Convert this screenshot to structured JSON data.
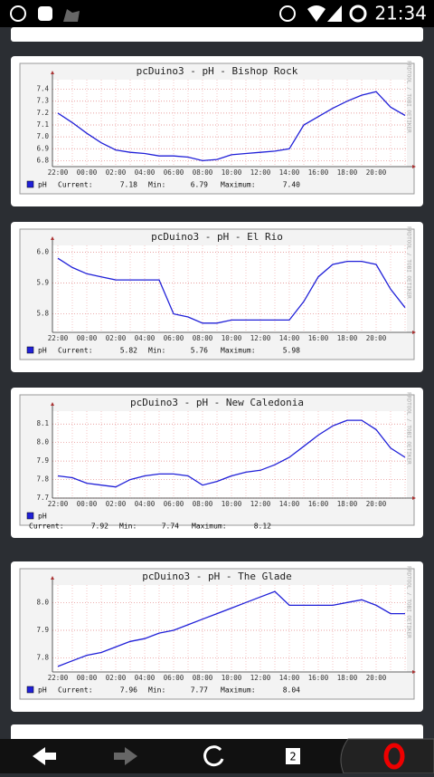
{
  "status_bar": {
    "time": "21:34"
  },
  "watermark": "RRDTOOL / TOBI OETIKER",
  "nav": {
    "tab_count": "2"
  },
  "chart_data": [
    {
      "type": "line",
      "title": "pcDuino3 - pH - Bishop Rock",
      "categories": [
        "22:00",
        null,
        "00:00",
        null,
        "02:00",
        null,
        "04:00",
        null,
        "06:00",
        null,
        "08:00",
        null,
        "10:00",
        null,
        "12:00",
        null,
        "14:00",
        null,
        "16:00",
        null,
        "18:00",
        null,
        "20:00",
        null,
        null
      ],
      "series": [
        {
          "name": "pH",
          "color": "#2020d8",
          "values": [
            7.2,
            7.12,
            7.03,
            6.95,
            6.89,
            6.87,
            6.86,
            6.84,
            6.84,
            6.83,
            6.8,
            6.81,
            6.85,
            6.86,
            6.87,
            6.88,
            6.9,
            7.1,
            7.17,
            7.24,
            7.3,
            7.35,
            7.38,
            7.25,
            7.18
          ]
        }
      ],
      "ylim": [
        6.75,
        7.45
      ],
      "yticks": [
        {
          "value": 6.8,
          "label": "6.8"
        },
        6.9,
        {
          "value": 7,
          "label": "7.0"
        },
        7.1,
        7.2,
        7.3,
        7.4
      ],
      "grid": true,
      "stats": [
        {
          "label": "Current:",
          "value": "7.18"
        },
        {
          "label": "Min:",
          "value": "6.79"
        },
        {
          "label": "Maximum:",
          "value": "7.40"
        }
      ]
    },
    {
      "type": "line",
      "title": "pcDuino3 - pH - El Rio",
      "categories": [
        "22:00",
        null,
        "00:00",
        null,
        "02:00",
        null,
        "04:00",
        null,
        "06:00",
        null,
        "08:00",
        null,
        "10:00",
        null,
        "12:00",
        null,
        "14:00",
        null,
        "16:00",
        null,
        "18:00",
        null,
        "20:00",
        null,
        null
      ],
      "series": [
        {
          "name": "pH",
          "color": "#2020d8",
          "values": [
            5.98,
            5.95,
            5.93,
            5.92,
            5.91,
            5.91,
            5.91,
            5.91,
            5.8,
            5.79,
            5.77,
            5.77,
            5.78,
            5.78,
            5.78,
            5.78,
            5.78,
            5.84,
            5.92,
            5.96,
            5.97,
            5.97,
            5.96,
            5.88,
            5.82
          ]
        }
      ],
      "ylim": [
        5.74,
        6.01
      ],
      "yticks": [
        5.8,
        5.9,
        {
          "value": 6,
          "label": "6.0"
        }
      ],
      "grid": true,
      "stats": [
        {
          "label": "Current:",
          "value": "5.82"
        },
        {
          "label": "Min:",
          "value": "5.76"
        },
        {
          "label": "Maximum:",
          "value": "5.98"
        }
      ]
    },
    {
      "type": "line",
      "title": "pcDuino3 - pH - New Caledonia",
      "categories": [
        "22:00",
        null,
        "00:00",
        null,
        "02:00",
        null,
        "04:00",
        null,
        "06:00",
        null,
        "08:00",
        null,
        "10:00",
        null,
        "12:00",
        null,
        "14:00",
        null,
        "16:00",
        null,
        "18:00",
        null,
        "20:00",
        null,
        null
      ],
      "series": [
        {
          "name": "pH",
          "color": "#2020d8",
          "values": [
            7.82,
            7.81,
            7.78,
            7.77,
            7.76,
            7.8,
            7.82,
            7.83,
            7.83,
            7.82,
            7.77,
            7.79,
            7.82,
            7.84,
            7.85,
            7.88,
            7.92,
            7.98,
            8.04,
            8.09,
            8.12,
            8.12,
            8.07,
            7.97,
            7.92
          ]
        }
      ],
      "ylim": [
        7.7,
        8.15
      ],
      "yticks": [
        7.7,
        7.8,
        7.9,
        {
          "value": 8,
          "label": "8.0"
        },
        8.1
      ],
      "grid": true,
      "stats": [
        {
          "label": "Current:",
          "value": "7.92"
        },
        {
          "label": "Min:",
          "value": "7.74"
        },
        {
          "label": "Maximum:",
          "value": "8.12"
        }
      ]
    },
    {
      "type": "line",
      "title": "pcDuino3 - pH - The Glade",
      "categories": [
        "22:00",
        null,
        "00:00",
        null,
        "02:00",
        null,
        "04:00",
        null,
        "06:00",
        null,
        "08:00",
        null,
        "10:00",
        null,
        "12:00",
        null,
        "14:00",
        null,
        "16:00",
        null,
        "18:00",
        null,
        "20:00",
        null,
        null
      ],
      "series": [
        {
          "name": "pH",
          "color": "#2020d8",
          "values": [
            7.77,
            7.79,
            7.81,
            7.82,
            7.84,
            7.86,
            7.87,
            7.89,
            7.9,
            7.92,
            7.94,
            7.96,
            7.98,
            8,
            8.02,
            8.04,
            7.99,
            7.99,
            7.99,
            7.99,
            8,
            8.01,
            7.99,
            7.96,
            7.96
          ]
        }
      ],
      "ylim": [
        7.75,
        8.05
      ],
      "yticks": [
        7.8,
        7.9,
        {
          "value": 8,
          "label": "8.0"
        }
      ],
      "grid": true,
      "stats": [
        {
          "label": "Current:",
          "value": "7.96"
        },
        {
          "label": "Min:",
          "value": "7.77"
        },
        {
          "label": "Maximum:",
          "value": "8.04"
        }
      ]
    }
  ]
}
